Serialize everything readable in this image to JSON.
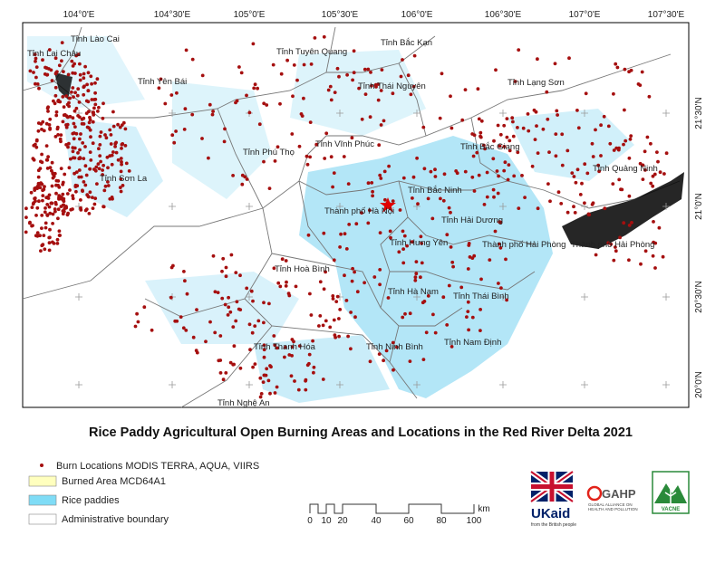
{
  "map": {
    "top_ticks": [
      "104°0'E",
      "104°30'E",
      "105°0'E",
      "105°30'E",
      "106°0'E",
      "106°30'E",
      "107°0'E",
      "107°30'E"
    ],
    "right_ticks": [
      "21°30'N",
      "21°0'N",
      "20°30'N",
      "20°0'N"
    ],
    "province_labels": [
      "Tỉnh Lào Cai",
      "Tỉnh Lai Châu",
      "Tỉnh Tuyên Quang",
      "Tỉnh Bắc Kạn",
      "Tỉnh Yên Bái",
      "Tỉnh Thái Nguyên",
      "Tỉnh Lạng Sơn",
      "Tỉnh Vĩnh Phúc",
      "Tỉnh Bắc Giang",
      "Tỉnh Phú Thọ",
      "Tỉnh Quảng Ninh",
      "Tỉnh Sơn La",
      "Tỉnh Bắc Ninh",
      "Thành phố Hà Nội",
      "Tỉnh Hải Dương",
      "Tỉnh Hưng Yên",
      "Thành phố Hải Phòng",
      "Thành phố Hải Phòng",
      "Tỉnh Hoà Bình",
      "Tỉnh Hà Nam",
      "Tỉnh Thái Bình",
      "Tỉnh Nam Định",
      "Tỉnh Ninh Bình",
      "Tỉnh Thanh Hóa",
      "Tỉnh Nghệ An"
    ]
  },
  "title": "Rice Paddy Agricultural Open Burning Areas and Locations in the Red River Delta 2021",
  "legend": [
    "Burn Locations MODIS TERRA, AQUA, VIIRS",
    "Burned Area MCD64A1",
    "Rice paddies",
    "Administrative boundary"
  ],
  "scale_bar": {
    "labels": [
      "0",
      "10",
      "20",
      "40",
      "60",
      "80",
      "100"
    ],
    "unit": "km"
  },
  "logos": {
    "ukaid": "UKaid",
    "ukaid_sub": "from the British people",
    "gahp": "GAHP",
    "gahp_sub": "GLOBAL ALLIANCE ON HEALTH AND POLLUTION",
    "vacne": "VACNE"
  }
}
